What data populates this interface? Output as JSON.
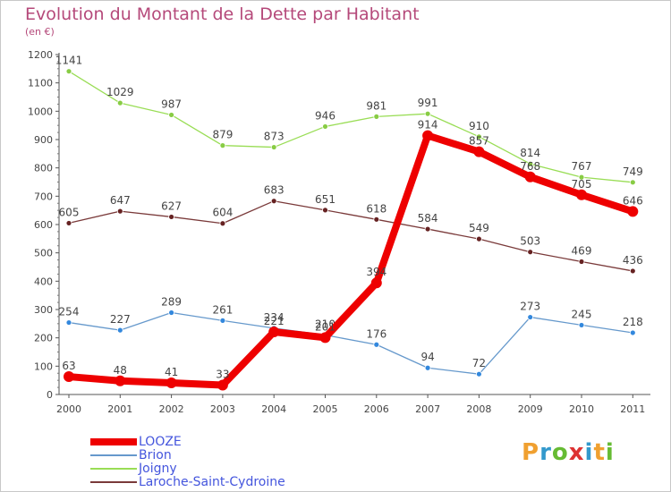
{
  "header": {
    "title": "Evolution du Montant de la Dette par Habitant",
    "unit": "(en €)"
  },
  "logo": {
    "text": "Proxiti",
    "letters": [
      {
        "ch": "P",
        "color": "#f0a030"
      },
      {
        "ch": "r",
        "color": "#3399cc"
      },
      {
        "ch": "o",
        "color": "#66bb33"
      },
      {
        "ch": "x",
        "color": "#dd3333"
      },
      {
        "ch": "i",
        "color": "#3399cc"
      },
      {
        "ch": "t",
        "color": "#f0a030"
      },
      {
        "ch": "i",
        "color": "#66bb33"
      }
    ]
  },
  "chart_data": {
    "type": "line",
    "title": "Evolution du Montant de la Dette par Habitant",
    "ylabel": "(en €)",
    "xlabel": "",
    "x": [
      "2000",
      "2001",
      "2002",
      "2003",
      "2004",
      "2005",
      "2006",
      "2007",
      "2008",
      "2009",
      "2010",
      "2011"
    ],
    "ylim": [
      0,
      1200
    ],
    "yticks": [
      "0",
      "100",
      "200",
      "300",
      "400",
      "500",
      "600",
      "700",
      "800",
      "900",
      "1000",
      "1100",
      "1200"
    ],
    "grid": false,
    "legend_position": "bottom-left",
    "series": [
      {
        "name": "Joigny",
        "color": "#99dd55",
        "marker": "#88cc44",
        "values": [
          1141,
          1029,
          987,
          879,
          873,
          946,
          981,
          991,
          910,
          814,
          767,
          749
        ],
        "labels": [
          "1141",
          "1029",
          "987",
          "879",
          "873",
          "946",
          "981",
          "991",
          "910",
          "814",
          "767",
          "749"
        ],
        "bold": false
      },
      {
        "name": "Laroche-Saint-Cydroine",
        "color": "#7a3a3a",
        "marker": "#662222",
        "values": [
          605,
          647,
          627,
          604,
          683,
          651,
          618,
          584,
          549,
          503,
          469,
          436
        ],
        "labels": [
          "605",
          "647",
          "627",
          "604",
          "683",
          "651",
          "618",
          "584",
          "549",
          "503",
          "469",
          "436"
        ],
        "bold": false
      },
      {
        "name": "Brion",
        "color": "#6699cc",
        "marker": "#3388dd",
        "values": [
          254,
          227,
          289,
          261,
          234,
          210,
          176,
          94,
          72,
          273,
          245,
          218
        ],
        "labels": [
          "254",
          "227",
          "289",
          "261",
          "234",
          "210",
          "176",
          "94",
          "72",
          "273",
          "245",
          "218"
        ],
        "bold": false
      },
      {
        "name": "LOOZE",
        "color": "#ee0000",
        "marker": "#ee0000",
        "values": [
          63,
          48,
          41,
          33,
          221,
          201,
          394,
          914,
          857,
          768,
          705,
          646
        ],
        "labels": [
          "63",
          "48",
          "41",
          "33",
          "221",
          "201",
          "394",
          "914",
          "857",
          "768",
          "705",
          "646"
        ],
        "bold": true
      }
    ]
  },
  "legend": {
    "items": [
      {
        "label": "LOOZE",
        "color": "#ee0000",
        "thickness": 8
      },
      {
        "label": "Brion",
        "color": "#6699cc",
        "thickness": 2
      },
      {
        "label": "Joigny",
        "color": "#99dd55",
        "thickness": 2
      },
      {
        "label": "Laroche-Saint-Cydroine",
        "color": "#7a3a3a",
        "thickness": 2
      }
    ]
  }
}
